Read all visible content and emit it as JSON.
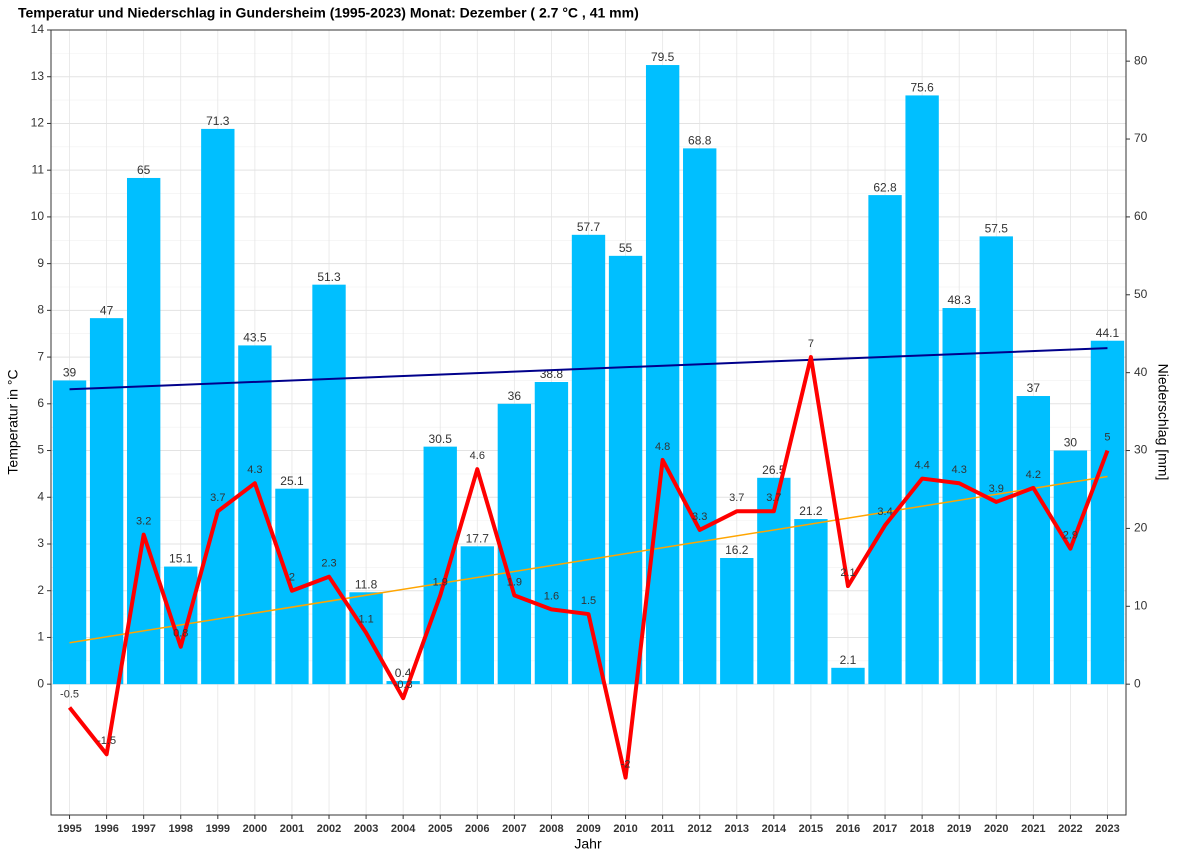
{
  "chart_data": {
    "type": "combo",
    "title": "Temperatur und Niederschlag in Gundersheim (1995-2023) Monat: Dezember ( 2.7 °C , 41 mm)",
    "x_label": "Jahr",
    "y_label": "Temperatur in °C",
    "y2_label": "Niederschlag [mm]",
    "categories": [
      "1995",
      "1996",
      "1997",
      "1998",
      "1999",
      "2000",
      "2001",
      "2002",
      "2003",
      "2004",
      "2005",
      "2006",
      "2007",
      "2008",
      "2009",
      "2010",
      "2011",
      "2012",
      "2013",
      "2014",
      "2015",
      "2016",
      "2017",
      "2018",
      "2019",
      "2020",
      "2021",
      "2022",
      "2023"
    ],
    "series": [
      {
        "type": "bar",
        "axis": "y2",
        "color": "#00bfff",
        "label_color": "#000000",
        "trend_color": "#00008b",
        "values": [
          39,
          47,
          65,
          15.1,
          71.3,
          43.5,
          25.1,
          51.3,
          11.8,
          0.4,
          30.5,
          17.7,
          36,
          38.8,
          57.7,
          55,
          79.5,
          68.8,
          16.2,
          26.5,
          21.2,
          2.1,
          62.8,
          75.6,
          48.3,
          57.5,
          37,
          30,
          44.1
        ]
      },
      {
        "type": "line",
        "axis": "y",
        "color": "#ff0000",
        "label_color": "#ff0000",
        "trend_color": "#ffa500",
        "values": [
          -0.5,
          -1.5,
          3.2,
          0.8,
          3.7,
          4.3,
          2,
          2.3,
          1.1,
          -0.3,
          1.9,
          4.6,
          1.9,
          1.6,
          1.5,
          -2,
          4.8,
          3.3,
          3.7,
          3.7,
          7,
          2.1,
          3.4,
          4.4,
          4.3,
          3.9,
          4.2,
          2.9,
          5
        ]
      }
    ],
    "ylim": [
      -2.8,
      14
    ],
    "yticks": [
      0,
      1,
      2,
      3,
      4,
      5,
      6,
      7,
      8,
      9,
      10,
      11,
      12,
      13,
      14
    ],
    "y2lim": [
      -16.8,
      84
    ],
    "y2ticks": [
      0,
      10,
      20,
      30,
      40,
      50,
      60,
      70,
      80
    ],
    "grid": true
  }
}
